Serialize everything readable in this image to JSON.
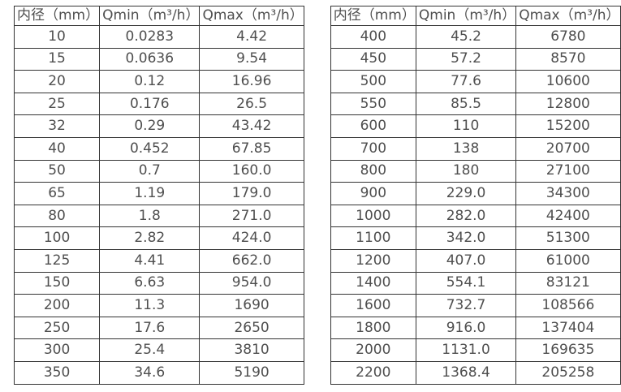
{
  "colors": {
    "background": "#ffffff",
    "border": "#333333",
    "text": "#4f4f4f"
  },
  "chart_data": [
    {
      "type": "table",
      "title": "",
      "columns": [
        "内径（mm）",
        "Qmin（m³/h）",
        "Qmax（m³/h）"
      ],
      "rows": [
        [
          "10",
          "0.0283",
          "4.42"
        ],
        [
          "15",
          "0.0636",
          "9.54"
        ],
        [
          "20",
          "0.12",
          "16.96"
        ],
        [
          "25",
          "0.176",
          "26.5"
        ],
        [
          "32",
          "0.29",
          "43.42"
        ],
        [
          "40",
          "0.452",
          "67.85"
        ],
        [
          "50",
          "0.7",
          "160.0"
        ],
        [
          "65",
          "1.19",
          "179.0"
        ],
        [
          "80",
          "1.8",
          "271.0"
        ],
        [
          "100",
          "2.82",
          "424.0"
        ],
        [
          "125",
          "4.41",
          "662.0"
        ],
        [
          "150",
          "6.63",
          "954.0"
        ],
        [
          "200",
          "11.3",
          "1690"
        ],
        [
          "250",
          "17.6",
          "2650"
        ],
        [
          "300",
          "25.4",
          "3810"
        ],
        [
          "350",
          "34.6",
          "5190"
        ]
      ]
    },
    {
      "type": "table",
      "title": "",
      "columns": [
        "内径（mm）",
        "Qmin（m³/h）",
        "Qmax（m³/h）"
      ],
      "rows": [
        [
          "400",
          "45.2",
          "6780"
        ],
        [
          "450",
          "57.2",
          "8570"
        ],
        [
          "500",
          "77.6",
          "10600"
        ],
        [
          "550",
          "85.5",
          "12800"
        ],
        [
          "600",
          "110",
          "15200"
        ],
        [
          "700",
          "138",
          "20700"
        ],
        [
          "800",
          "180",
          "27100"
        ],
        [
          "900",
          "229.0",
          "34300"
        ],
        [
          "1000",
          "282.0",
          "42400"
        ],
        [
          "1100",
          "342.0",
          "51300"
        ],
        [
          "1200",
          "407.0",
          "61000"
        ],
        [
          "1400",
          "554.1",
          "83121"
        ],
        [
          "1600",
          "732.7",
          "108566"
        ],
        [
          "1800",
          "916.0",
          "137404"
        ],
        [
          "2000",
          "1131.0",
          "169635"
        ],
        [
          "2200",
          "1368.4",
          "205258"
        ]
      ]
    }
  ]
}
